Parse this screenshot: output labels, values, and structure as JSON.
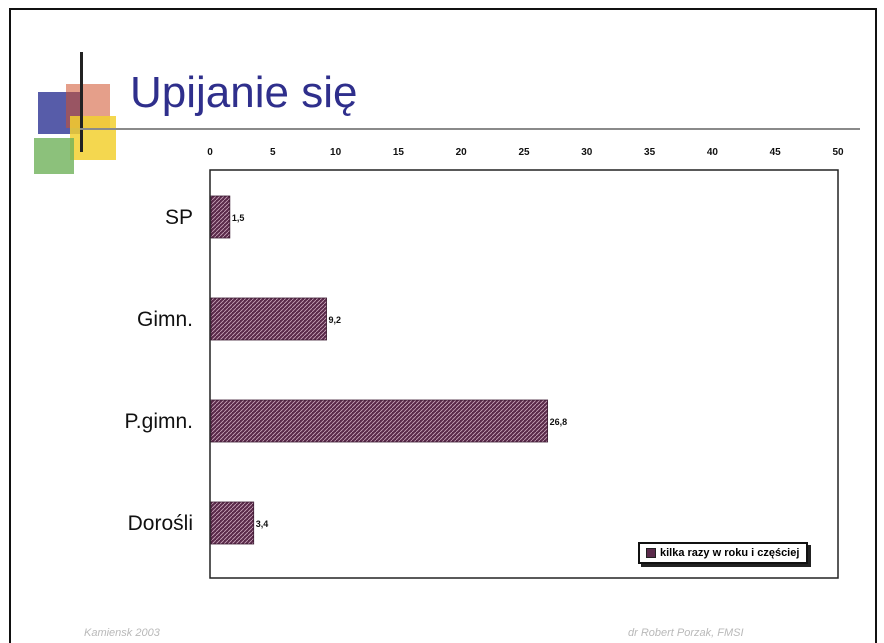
{
  "slide": {
    "title": "Upijanie się",
    "footer_left": "Kamiensk 2003",
    "footer_right": "dr Robert Porzak, FMSI"
  },
  "colors": {
    "title": "#2f2f8c",
    "bar": "#5a2a4a",
    "deco_blue": "#3a3f9a",
    "deco_red": "#d0502a",
    "deco_yellow": "#f2d030",
    "deco_green": "#6fb25a"
  },
  "chart_data": {
    "type": "bar",
    "orientation": "horizontal",
    "categories": [
      "SP",
      "Gimn.",
      "P.gimn.",
      "Dorośli"
    ],
    "series": [
      {
        "name": "kilka razy w roku i częściej",
        "values": [
          1.5,
          9.2,
          26.8,
          3.4
        ]
      }
    ],
    "data_labels": [
      "1,5",
      "9,2",
      "26,8",
      "3,4"
    ],
    "x_ticks": [
      0,
      5,
      10,
      15,
      20,
      25,
      30,
      35,
      40,
      45,
      50
    ],
    "xlim": [
      0,
      50
    ],
    "x_axis_position": "top",
    "grid": false,
    "legend_position": "bottom-right"
  }
}
